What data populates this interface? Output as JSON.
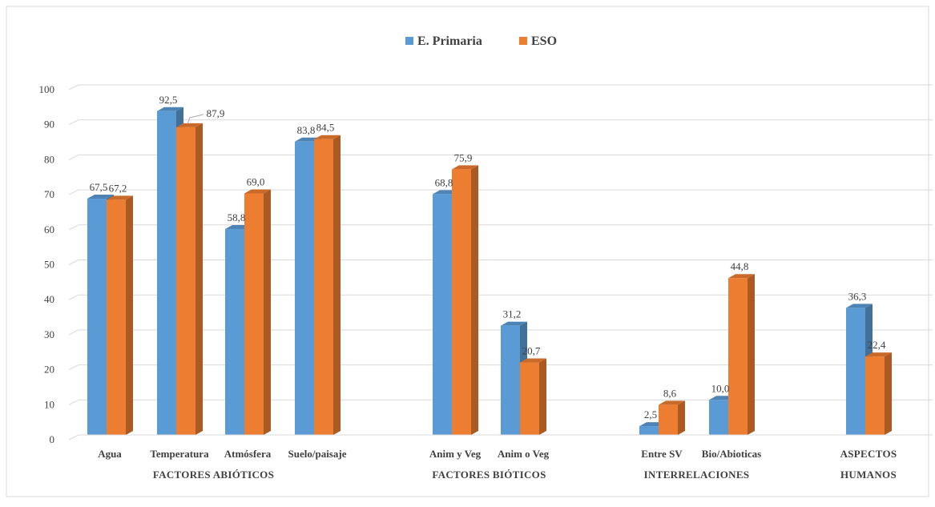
{
  "chart_data": {
    "type": "bar",
    "title": "",
    "xlabel": "",
    "ylabel": "",
    "ylim": [
      0,
      100
    ],
    "yticks": [
      0,
      10,
      20,
      30,
      40,
      50,
      60,
      70,
      80,
      90,
      100
    ],
    "grid": true,
    "legend_position": "top-center",
    "categories": [
      "Agua",
      "Temperatura",
      "Atmósfera",
      "Suelo/paisaje",
      "Anim y Veg",
      "Anim o Veg",
      "Entre SV",
      "Bio/Abioticas",
      ""
    ],
    "groups": [
      {
        "lines": [
          "FACTORES ABIÓTICOS"
        ],
        "categories": [
          "Agua",
          "Temperatura",
          "Atmósfera",
          "Suelo/paisaje"
        ]
      },
      {
        "lines": [
          "FACTORES BIÓTICOS"
        ],
        "categories": [
          "Anim y Veg",
          "Anim o Veg"
        ]
      },
      {
        "lines": [
          "INTERRELACIONES"
        ],
        "categories": [
          "Entre SV",
          "Bio/Abioticas"
        ]
      },
      {
        "lines": [
          "ASPECTOS",
          "HUMANOS"
        ],
        "categories": [
          ""
        ]
      }
    ],
    "series": [
      {
        "name": "E. Primaria",
        "color": "#5b9bd5",
        "values": [
          67.5,
          92.5,
          58.8,
          83.8,
          68.8,
          31.2,
          2.5,
          10.0,
          36.3
        ],
        "labels": [
          "67,5",
          "92,5",
          "58,8",
          "83,8",
          "68,8",
          "31,2",
          "2,5",
          "10,0",
          "36,3"
        ]
      },
      {
        "name": "ESO",
        "color": "#ed7d31",
        "values": [
          67.2,
          87.9,
          69.0,
          84.5,
          75.9,
          20.7,
          8.6,
          44.8,
          22.4
        ],
        "labels": [
          "67,2",
          "87,9",
          "69,0",
          "84,5",
          "75,9",
          "20,7",
          "8,6",
          "44,8",
          "22,4"
        ]
      }
    ]
  }
}
